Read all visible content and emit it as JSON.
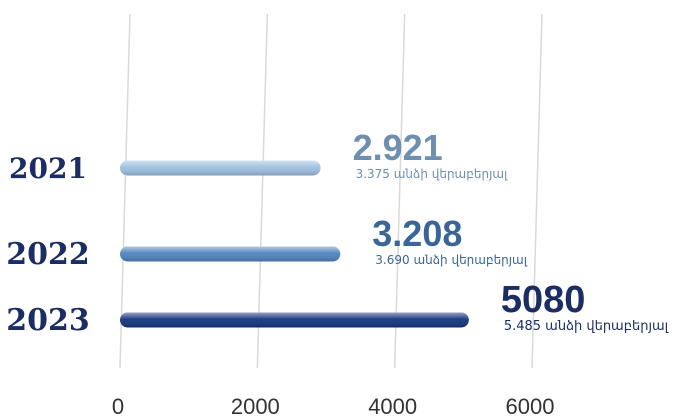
{
  "chart_data": {
    "type": "bar",
    "orientation": "horizontal",
    "categories": [
      "2021",
      "2022",
      "2023"
    ],
    "values": [
      2921,
      3208,
      5080
    ],
    "value_labels": [
      "2.921",
      "3.208",
      "5080"
    ],
    "sub_labels": [
      "3.375 անձի վերաբերյալ",
      "3.690 անձի վերաբերյալ",
      "5.485 անձի վերաբերյալ"
    ],
    "xlim": [
      0,
      6000
    ],
    "x_ticks": [
      0,
      2000,
      4000,
      6000
    ],
    "grid": true,
    "colors": [
      "#9dbfe0",
      "#4f83bf",
      "#15347d"
    ],
    "value_label_colors": [
      "#6f8fb0",
      "#3a6596",
      "#1b2d63"
    ]
  }
}
